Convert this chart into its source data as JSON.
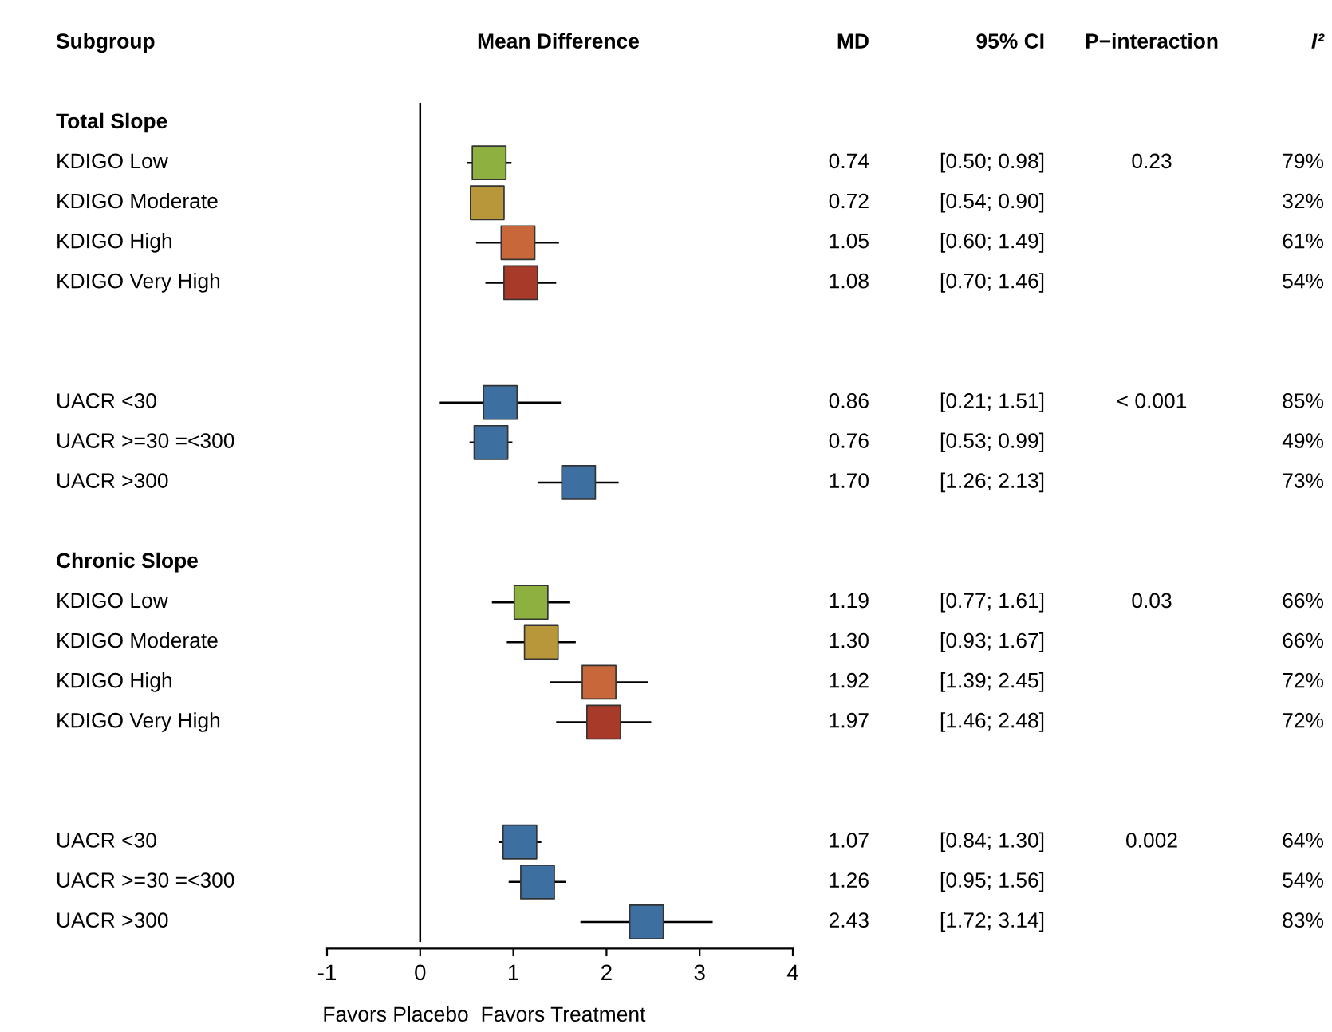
{
  "chart_data": {
    "type": "scatter",
    "orientation": "horizontal",
    "title": "Mean Difference",
    "ylabel": "Subgroup",
    "categories": [
      "Total Slope",
      "KDIGO Low",
      "KDIGO Moderate",
      "KDIGO High",
      "KDIGO Very High",
      null,
      null,
      "UACR <30",
      "UACR >=30 =<300",
      "UACR >300",
      null,
      "Chronic Slope",
      "KDIGO Low",
      "KDIGO Moderate",
      "KDIGO High",
      "KDIGO Very High",
      null,
      null,
      "UACR <30",
      "UACR >=30 =<300",
      "UACR >300"
    ],
    "values": [
      null,
      0.74,
      0.72,
      1.05,
      1.08,
      null,
      null,
      0.86,
      0.76,
      1.7,
      null,
      null,
      1.19,
      1.3,
      1.92,
      1.97,
      null,
      null,
      1.07,
      1.26,
      2.43
    ],
    "errors": [
      null,
      [
        0.5,
        0.98
      ],
      [
        0.54,
        0.9
      ],
      [
        0.6,
        1.49
      ],
      [
        0.7,
        1.46
      ],
      null,
      null,
      [
        0.21,
        1.51
      ],
      [
        0.53,
        0.99
      ],
      [
        1.26,
        2.13
      ],
      null,
      null,
      [
        0.77,
        1.61
      ],
      [
        0.93,
        1.67
      ],
      [
        1.39,
        2.45
      ],
      [
        1.46,
        2.48
      ],
      null,
      null,
      [
        0.84,
        1.3
      ],
      [
        0.95,
        1.56
      ],
      [
        1.72,
        3.14
      ]
    ],
    "value_labels": [
      null,
      "0.74",
      "0.72",
      "1.05",
      "1.08",
      null,
      null,
      "0.86",
      "0.76",
      "1.70",
      null,
      null,
      "1.19",
      "1.30",
      "1.92",
      "1.97",
      null,
      null,
      "1.07",
      "1.26",
      "2.43"
    ],
    "colors": [
      null,
      "#8db040",
      "#b8963a",
      "#c8683a",
      "#a83a2a",
      null,
      null,
      "#3d6fa0",
      "#3d6fa0",
      "#3d6fa0",
      null,
      null,
      "#8db040",
      "#b8963a",
      "#c8683a",
      "#a83a2a",
      null,
      null,
      "#3d6fa0",
      "#3d6fa0",
      "#3d6fa0"
    ],
    "marker": "square",
    "xlim": [
      -1,
      4
    ],
    "xticks": [
      -1,
      0,
      1,
      2,
      3,
      4
    ],
    "ref_lines": [
      {
        "axis": "x",
        "value": 0
      }
    ],
    "grid": false,
    "annotations": [
      "MD",
      "95% CI",
      "P−interaction",
      "I²",
      "Favors Placebo",
      "Favors Treatment",
      "[0.50; 0.98]",
      "[0.54; 0.90]",
      "[0.60; 1.49]",
      "[0.70; 1.46]",
      "[0.21; 1.51]",
      "[0.53; 0.99]",
      "[1.26; 2.13]",
      "[0.77; 1.61]",
      "[0.93; 1.67]",
      "[1.39; 2.45]",
      "[1.46; 2.48]",
      "[0.84; 1.30]",
      "[0.95; 1.56]",
      "[1.72; 3.14]",
      "79%",
      "32%",
      "61%",
      "54%",
      "85%",
      "49%",
      "73%",
      "66%",
      "66%",
      "72%",
      "72%",
      "64%",
      "54%",
      "83%",
      "0.23",
      "< 0.001",
      "0.03",
      "0.002"
    ]
  }
}
